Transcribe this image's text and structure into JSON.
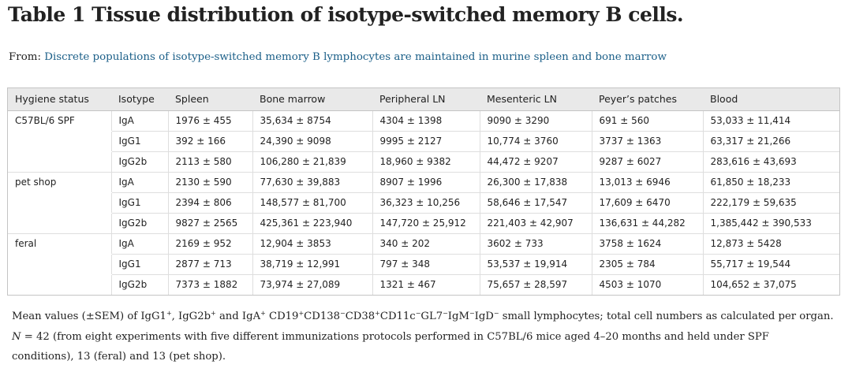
{
  "title": "Table 1 Tissue distribution of isotype-switched memory B cells.",
  "from_label": "From:",
  "from_link": "Discrete populations of isotype-switched memory B lymphocytes are maintained in murine spleen and bone marrow",
  "table": {
    "headers": [
      "Hygiene status",
      "Isotype",
      "Spleen",
      "Bone marrow",
      "Peripheral LN",
      "Mesenteric LN",
      "Peyer’s patches",
      "Blood"
    ],
    "rows": [
      [
        "C57BL/6 SPF",
        "IgA",
        "1976 ± 455",
        "35,634 ± 8754",
        "4304 ± 1398",
        "9090 ± 3290",
        "691 ± 560",
        "53,033 ± 11,414"
      ],
      [
        "",
        "IgG1",
        "392 ± 166",
        "24,390 ± 9098",
        "9995 ± 2127",
        "10,774 ± 3760",
        "3737 ± 1363",
        "63,317 ± 21,266"
      ],
      [
        "",
        "IgG2b",
        "2113 ± 580",
        "106,280 ± 21,839",
        "18,960 ± 9382",
        "44,472 ± 9207",
        "9287 ± 6027",
        "283,616 ± 43,693"
      ],
      [
        "pet shop",
        "IgA",
        "2130 ± 590",
        "77,630 ± 39,883",
        "8907 ± 1996",
        "26,300 ± 17,838",
        "13,013 ± 6946",
        "61,850 ± 18,233"
      ],
      [
        "",
        "IgG1",
        "2394 ± 806",
        "148,577 ± 81,700",
        "36,323 ± 10,256",
        "58,646 ± 17,547",
        "17,609 ± 6470",
        "222,179 ± 59,635"
      ],
      [
        "",
        "IgG2b",
        "9827 ± 2565",
        "425,361 ± 223,940",
        "147,720 ± 25,912",
        "221,403 ± 42,907",
        "136,631 ± 44,282",
        "1,385,442 ± 390,533"
      ],
      [
        "feral",
        "IgA",
        "2169 ± 952",
        "12,904 ± 3853",
        "340 ± 202",
        "3602 ± 733",
        "3758 ± 1624",
        "12,873 ± 5428"
      ],
      [
        "",
        "IgG1",
        "2877 ± 713",
        "38,719 ± 12,991",
        "797 ± 348",
        "53,537 ± 19,914",
        "2305 ± 784",
        "55,717 ± 19,544"
      ],
      [
        "",
        "IgG2b",
        "7373 ± 1882",
        "73,974 ± 27,089",
        "1321 ± 467",
        "75,657 ± 28,597",
        "4503 ± 1070",
        "104,652 ± 37,075"
      ]
    ]
  },
  "footnote": {
    "line1_parts": [
      {
        "t": "Mean values (±SEM) of IgG1"
      },
      {
        "s": "+"
      },
      {
        "t": ", IgG2b"
      },
      {
        "s": "+"
      },
      {
        "t": " and IgA"
      },
      {
        "s": "+"
      },
      {
        "t": " CD19"
      },
      {
        "s": "+"
      },
      {
        "t": "CD138"
      },
      {
        "s": "−"
      },
      {
        "t": "CD38"
      },
      {
        "s": "+"
      },
      {
        "t": "CD11c"
      },
      {
        "s": "−"
      },
      {
        "t": "GL7"
      },
      {
        "s": "−"
      },
      {
        "t": "IgM"
      },
      {
        "s": "−"
      },
      {
        "t": "IgD"
      },
      {
        "s": "−"
      },
      {
        "t": " small lymphocytes; total cell numbers as calculated per organ."
      }
    ],
    "line2_n": "N",
    "line2": " = 42 (from eight experiments with five different immunizations protocols performed in C57BL/6 mice aged 4–20 months and held under SPF",
    "line3": "conditions), 13 (feral) and 13 (pet shop)."
  }
}
